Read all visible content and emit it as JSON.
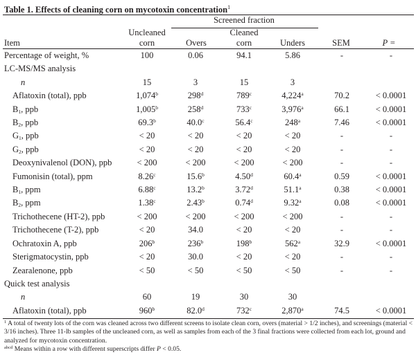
{
  "table": {
    "title": "Table 1. Effects of cleaning corn on mycotoxin concentration",
    "title_note": "1",
    "spanner": "Screened fraction",
    "headers": {
      "item": "Item",
      "uncleaned_1": "Uncleaned",
      "uncleaned_2": "corn",
      "overs": "Overs",
      "cleaned_1": "Cleaned",
      "cleaned_2": "corn",
      "unders": "Unders",
      "sem": "SEM",
      "p": "P ="
    },
    "rows": [
      {
        "type": "lbl",
        "label": "Percentage of weight, %",
        "cells": [
          {
            "v": "100"
          },
          {
            "v": "0.06"
          },
          {
            "v": "94.1"
          },
          {
            "v": "5.86"
          },
          {
            "v": "-"
          },
          {
            "v": "-"
          }
        ]
      },
      {
        "type": "lbl",
        "label": "LC-MS/MS analysis",
        "cells": []
      },
      {
        "type": "ind2",
        "label": "n",
        "cells": [
          {
            "v": "15"
          },
          {
            "v": "3"
          },
          {
            "v": "15"
          },
          {
            "v": "3"
          },
          {
            "v": ""
          },
          {
            "v": ""
          }
        ]
      },
      {
        "type": "ind1",
        "label": "Aflatoxin (total), ppb",
        "cells": [
          {
            "v": "1,074",
            "s": "b"
          },
          {
            "v": "298",
            "s": "d"
          },
          {
            "v": "789",
            "s": "c"
          },
          {
            "v": "4,224",
            "s": "a"
          },
          {
            "v": "70.2"
          },
          {
            "v": "< 0.0001"
          }
        ]
      },
      {
        "type": "ind1",
        "label": "B",
        "sub": "1",
        "rest": ", ppb",
        "cells": [
          {
            "v": "1,005",
            "s": "b"
          },
          {
            "v": "258",
            "s": "d"
          },
          {
            "v": "733",
            "s": "c"
          },
          {
            "v": "3,976",
            "s": "a"
          },
          {
            "v": "66.1"
          },
          {
            "v": "< 0.0001"
          }
        ]
      },
      {
        "type": "ind1",
        "label": "B",
        "sub": "2",
        "rest": ", ppb",
        "cells": [
          {
            "v": "69.3",
            "s": "b"
          },
          {
            "v": "40.0",
            "s": "c"
          },
          {
            "v": "56.4",
            "s": "c"
          },
          {
            "v": "248",
            "s": "a"
          },
          {
            "v": "7.46"
          },
          {
            "v": "< 0.0001"
          }
        ]
      },
      {
        "type": "ind1",
        "label": "G",
        "sub": "1",
        "rest": ", ppb",
        "cells": [
          {
            "v": "< 20"
          },
          {
            "v": "< 20"
          },
          {
            "v": "< 20"
          },
          {
            "v": "< 20"
          },
          {
            "v": "-"
          },
          {
            "v": "-"
          }
        ]
      },
      {
        "type": "ind1",
        "label": "G",
        "sub": "2",
        "rest": ", ppb",
        "cells": [
          {
            "v": "< 20"
          },
          {
            "v": "< 20"
          },
          {
            "v": "< 20"
          },
          {
            "v": "< 20"
          },
          {
            "v": "-"
          },
          {
            "v": "-"
          }
        ]
      },
      {
        "type": "ind1",
        "label": "Deoxynivalenol (DON), ppb",
        "cells": [
          {
            "v": "< 200"
          },
          {
            "v": "< 200"
          },
          {
            "v": "< 200"
          },
          {
            "v": "< 200"
          },
          {
            "v": "-"
          },
          {
            "v": "-"
          }
        ]
      },
      {
        "type": "ind1",
        "label": "Fumonisin (total), ppm",
        "cells": [
          {
            "v": "8.26",
            "s": "c"
          },
          {
            "v": "15.6",
            "s": "b"
          },
          {
            "v": "4.50",
            "s": "d"
          },
          {
            "v": "60.4",
            "s": "a"
          },
          {
            "v": "0.59"
          },
          {
            "v": "< 0.0001"
          }
        ]
      },
      {
        "type": "ind1",
        "label": "B",
        "sub": "1",
        "rest": ", ppm",
        "cells": [
          {
            "v": "6.88",
            "s": "c"
          },
          {
            "v": "13.2",
            "s": "b"
          },
          {
            "v": "3.72",
            "s": "d"
          },
          {
            "v": "51.1",
            "s": "a"
          },
          {
            "v": "0.38"
          },
          {
            "v": "< 0.0001"
          }
        ]
      },
      {
        "type": "ind1",
        "label": "B",
        "sub": "2",
        "rest": ", ppm",
        "cells": [
          {
            "v": "1.38",
            "s": "c"
          },
          {
            "v": "2.43",
            "s": "b"
          },
          {
            "v": "0.74",
            "s": "d"
          },
          {
            "v": "9.32",
            "s": "a"
          },
          {
            "v": "0.08"
          },
          {
            "v": "< 0.0001"
          }
        ]
      },
      {
        "type": "ind1",
        "label": "Trichothecene (HT-2), ppb",
        "cells": [
          {
            "v": "< 200"
          },
          {
            "v": "< 200"
          },
          {
            "v": "< 200"
          },
          {
            "v": "< 200"
          },
          {
            "v": "-"
          },
          {
            "v": "-"
          }
        ]
      },
      {
        "type": "ind1",
        "label": "Trichothecene (T-2), ppb",
        "cells": [
          {
            "v": "< 20"
          },
          {
            "v": "34.0"
          },
          {
            "v": "< 20"
          },
          {
            "v": "< 20"
          },
          {
            "v": "-"
          },
          {
            "v": "-"
          }
        ]
      },
      {
        "type": "ind1",
        "label": "Ochratoxin A, ppb",
        "cells": [
          {
            "v": "206",
            "s": "b"
          },
          {
            "v": "236",
            "s": "b"
          },
          {
            "v": "198",
            "s": "b"
          },
          {
            "v": "562",
            "s": "a"
          },
          {
            "v": "32.9"
          },
          {
            "v": "< 0.0001"
          }
        ]
      },
      {
        "type": "ind1",
        "label": "Sterigmatocystin, ppb",
        "cells": [
          {
            "v": "< 20"
          },
          {
            "v": "30.0"
          },
          {
            "v": "< 20"
          },
          {
            "v": "< 20"
          },
          {
            "v": "-"
          },
          {
            "v": "-"
          }
        ]
      },
      {
        "type": "ind1",
        "label": "Zearalenone, ppb",
        "cells": [
          {
            "v": "< 50"
          },
          {
            "v": "< 50"
          },
          {
            "v": "< 50"
          },
          {
            "v": "< 50"
          },
          {
            "v": "-"
          },
          {
            "v": "-"
          }
        ]
      },
      {
        "type": "lbl",
        "label": "Quick test analysis",
        "cells": []
      },
      {
        "type": "ind2",
        "label": "n",
        "cells": [
          {
            "v": "60"
          },
          {
            "v": "19"
          },
          {
            "v": "30"
          },
          {
            "v": "30"
          },
          {
            "v": ""
          },
          {
            "v": ""
          }
        ]
      },
      {
        "type": "ind1",
        "label": "Aflatoxin (total), ppb",
        "cells": [
          {
            "v": "960",
            "s": "b"
          },
          {
            "v": "82.0",
            "s": "d"
          },
          {
            "v": "732",
            "s": "c"
          },
          {
            "v": "2,870",
            "s": "a"
          },
          {
            "v": "74.5"
          },
          {
            "v": "< 0.0001"
          }
        ]
      }
    ],
    "footnotes": {
      "fn1_mark": "1",
      "fn1": "A total of twenty lots of the corn was cleaned across two different screens to isolate clean corn, overs (material > 1/2 inches), and screenings (material < 3/16 inches). Three 11-lb samples of the uncleaned corn, as well as samples from each of the 3 final fractions were collected from each lot, ground and analyzed for mycotoxin concentration.",
      "fn2_mark": "abcd",
      "fn2_text": "Means within a row with different superscripts differ ",
      "fn2_p": "P",
      "fn2_tail": " < 0.05."
    }
  }
}
